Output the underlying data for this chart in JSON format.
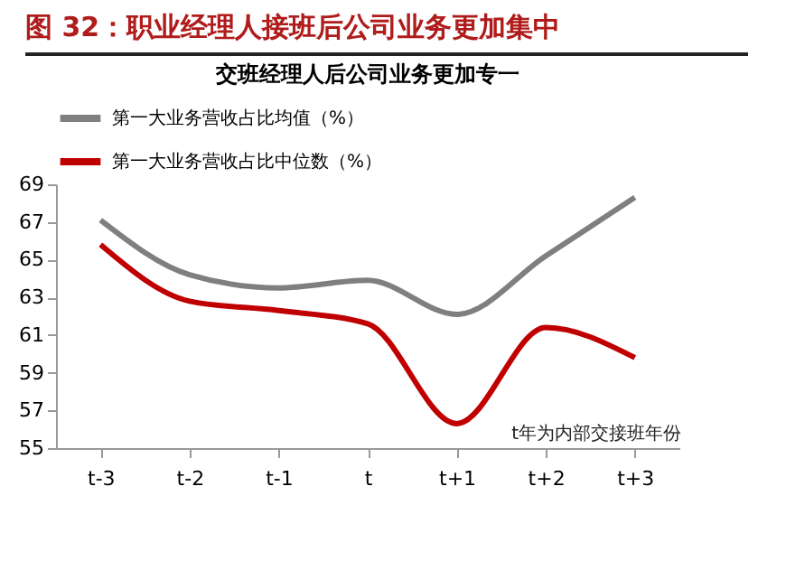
{
  "chart_data": {
    "type": "line",
    "title": "图 32：职业经理人接班后公司业务更加集中",
    "subtitle": "交班经理人后公司业务更加专一",
    "categories": [
      "t-3",
      "t-2",
      "t-1",
      "t",
      "t+1",
      "t+2",
      "t+3"
    ],
    "series": [
      {
        "name": "第一大业务营收占比均值（%）",
        "color": "#7f7f7f",
        "values": [
          67.1,
          64.2,
          63.5,
          63.9,
          62.1,
          65.2,
          68.3
        ]
      },
      {
        "name": "第一大业务营收占比中位数（%）",
        "color": "#c00000",
        "values": [
          65.8,
          62.8,
          62.3,
          61.6,
          56.3,
          61.4,
          59.8
        ]
      }
    ],
    "ylim": [
      55,
      69
    ],
    "yticks": [
      55,
      57,
      59,
      61,
      63,
      65,
      67,
      69
    ],
    "grid": false,
    "legend": "top",
    "marker": "none",
    "line_style": "solid",
    "annotations": [
      "t年为内部交接班年份"
    ]
  }
}
